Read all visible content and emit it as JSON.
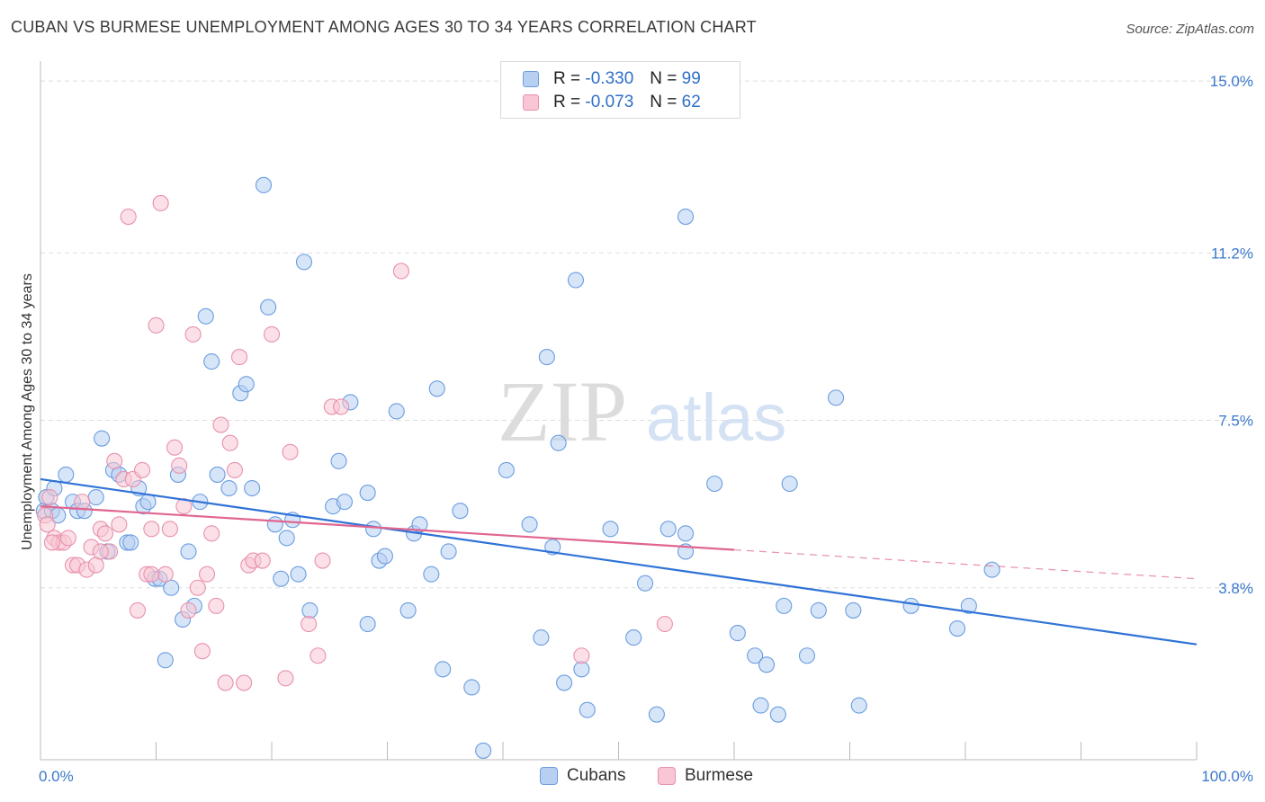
{
  "title": "CUBAN VS BURMESE UNEMPLOYMENT AMONG AGES 30 TO 34 YEARS CORRELATION CHART",
  "source": "Source: ZipAtlas.com",
  "watermark": {
    "zip": "ZIP",
    "atlas": "atlas"
  },
  "legend": {
    "r_label": "R =",
    "n_label": "N =",
    "rows": [
      {
        "name": "Cubans",
        "r": "-0.330",
        "n": "99",
        "fill": "#b7d0f2",
        "stroke": "#6a9de0"
      },
      {
        "name": "Burmese",
        "r": "-0.073",
        "n": "62",
        "fill": "#f8c6d4",
        "stroke": "#e891ac"
      }
    ]
  },
  "chart_data": {
    "type": "scatter",
    "title": "CUBAN VS BURMESE UNEMPLOYMENT AMONG AGES 30 TO 34 YEARS CORRELATION CHART",
    "xlabel": "",
    "ylabel": "Unemployment Among Ages 30 to 34 years",
    "xlim": [
      0,
      100
    ],
    "ylim": [
      0,
      15.2
    ],
    "x_tick_labels": [
      "0.0%",
      "100.0%"
    ],
    "y_ticks": [
      3.8,
      7.5,
      11.2,
      15.0
    ],
    "y_tick_labels": [
      "3.8%",
      "7.5%",
      "11.2%",
      "15.0%"
    ],
    "grid": true,
    "legend_position": "top-center",
    "series": [
      {
        "name": "Cubans",
        "color": "#6a9de0",
        "fill": "#b7d0f2",
        "trend_color": "#2f72d6",
        "trend": {
          "x0": 0,
          "y0": 6.2,
          "x1": 100,
          "y1": 2.55,
          "dashed_from": null
        },
        "points": [
          [
            0.3,
            5.5
          ],
          [
            0.5,
            5.8
          ],
          [
            1.0,
            5.5
          ],
          [
            1.2,
            6.0
          ],
          [
            1.5,
            5.4
          ],
          [
            2.2,
            6.3
          ],
          [
            2.8,
            5.7
          ],
          [
            3.2,
            5.5
          ],
          [
            3.8,
            5.5
          ],
          [
            4.8,
            5.8
          ],
          [
            5.3,
            7.1
          ],
          [
            5.8,
            4.6
          ],
          [
            6.3,
            6.4
          ],
          [
            6.8,
            6.3
          ],
          [
            7.5,
            4.8
          ],
          [
            7.8,
            4.8
          ],
          [
            8.5,
            6.0
          ],
          [
            8.9,
            5.6
          ],
          [
            9.3,
            5.7
          ],
          [
            9.9,
            4.0
          ],
          [
            10.3,
            4.0
          ],
          [
            10.8,
            2.2
          ],
          [
            11.3,
            3.8
          ],
          [
            11.9,
            6.3
          ],
          [
            12.3,
            3.1
          ],
          [
            12.8,
            4.6
          ],
          [
            13.3,
            3.4
          ],
          [
            13.8,
            5.7
          ],
          [
            14.3,
            9.8
          ],
          [
            14.8,
            8.8
          ],
          [
            15.3,
            6.3
          ],
          [
            16.3,
            6.0
          ],
          [
            17.3,
            8.1
          ],
          [
            17.8,
            8.3
          ],
          [
            18.3,
            6.0
          ],
          [
            19.3,
            12.7
          ],
          [
            19.7,
            10.0
          ],
          [
            20.3,
            5.2
          ],
          [
            20.8,
            4.0
          ],
          [
            21.3,
            4.9
          ],
          [
            21.8,
            5.3
          ],
          [
            22.3,
            4.1
          ],
          [
            22.8,
            11.0
          ],
          [
            23.3,
            3.3
          ],
          [
            25.3,
            5.6
          ],
          [
            25.8,
            6.6
          ],
          [
            26.3,
            5.7
          ],
          [
            26.8,
            7.9
          ],
          [
            28.3,
            5.9
          ],
          [
            28.8,
            5.1
          ],
          [
            28.3,
            3.0
          ],
          [
            29.3,
            4.4
          ],
          [
            29.8,
            4.5
          ],
          [
            30.8,
            7.7
          ],
          [
            31.8,
            3.3
          ],
          [
            32.3,
            5.0
          ],
          [
            32.8,
            5.2
          ],
          [
            33.8,
            4.1
          ],
          [
            34.3,
            8.2
          ],
          [
            34.8,
            2.0
          ],
          [
            35.3,
            4.6
          ],
          [
            36.3,
            5.5
          ],
          [
            37.3,
            1.6
          ],
          [
            38.3,
            0.2
          ],
          [
            40.3,
            6.4
          ],
          [
            42.3,
            5.2
          ],
          [
            43.3,
            2.7
          ],
          [
            43.8,
            8.9
          ],
          [
            44.3,
            4.7
          ],
          [
            44.8,
            7.0
          ],
          [
            45.3,
            1.7
          ],
          [
            46.3,
            10.6
          ],
          [
            46.8,
            2.0
          ],
          [
            47.3,
            1.1
          ],
          [
            49.3,
            5.1
          ],
          [
            51.3,
            2.7
          ],
          [
            52.3,
            3.9
          ],
          [
            53.3,
            1.0
          ],
          [
            54.3,
            5.1
          ],
          [
            55.8,
            5.0
          ],
          [
            55.8,
            4.6
          ],
          [
            55.8,
            12.0
          ],
          [
            58.3,
            6.1
          ],
          [
            60.3,
            2.8
          ],
          [
            61.8,
            2.3
          ],
          [
            62.3,
            1.2
          ],
          [
            62.8,
            2.1
          ],
          [
            63.8,
            1.0
          ],
          [
            64.3,
            3.4
          ],
          [
            64.8,
            6.1
          ],
          [
            66.3,
            2.3
          ],
          [
            67.3,
            3.3
          ],
          [
            68.8,
            8.0
          ],
          [
            70.3,
            3.3
          ],
          [
            70.8,
            1.2
          ],
          [
            75.3,
            3.4
          ],
          [
            79.3,
            2.9
          ],
          [
            80.3,
            3.4
          ],
          [
            82.3,
            4.2
          ]
        ]
      },
      {
        "name": "Burmese",
        "color": "#e891ac",
        "fill": "#f8c6d4",
        "trend_color": "#e0658f",
        "trend": {
          "x0": 0,
          "y0": 5.6,
          "x1": 100,
          "y1": 4.0,
          "solid_until": 60
        },
        "points": [
          [
            0.4,
            5.4
          ],
          [
            0.8,
            5.8
          ],
          [
            1.2,
            4.9
          ],
          [
            1.6,
            4.8
          ],
          [
            2.0,
            4.8
          ],
          [
            2.4,
            4.9
          ],
          [
            2.8,
            4.3
          ],
          [
            3.2,
            4.3
          ],
          [
            3.6,
            5.7
          ],
          [
            4.0,
            4.2
          ],
          [
            4.4,
            4.7
          ],
          [
            4.8,
            4.3
          ],
          [
            5.2,
            5.1
          ],
          [
            5.6,
            5.0
          ],
          [
            6.0,
            4.6
          ],
          [
            6.4,
            6.6
          ],
          [
            6.8,
            5.2
          ],
          [
            7.2,
            6.2
          ],
          [
            7.6,
            12.0
          ],
          [
            8.0,
            6.2
          ],
          [
            8.4,
            3.3
          ],
          [
            8.8,
            6.4
          ],
          [
            9.2,
            4.1
          ],
          [
            9.6,
            5.1
          ],
          [
            10.0,
            9.6
          ],
          [
            10.4,
            12.3
          ],
          [
            10.8,
            4.1
          ],
          [
            11.2,
            5.1
          ],
          [
            11.6,
            6.9
          ],
          [
            12.0,
            6.5
          ],
          [
            12.4,
            5.6
          ],
          [
            12.8,
            3.3
          ],
          [
            13.2,
            9.4
          ],
          [
            13.6,
            3.8
          ],
          [
            14.0,
            2.4
          ],
          [
            14.4,
            4.1
          ],
          [
            14.8,
            5.0
          ],
          [
            15.2,
            3.4
          ],
          [
            15.6,
            7.4
          ],
          [
            16.0,
            1.7
          ],
          [
            16.4,
            7.0
          ],
          [
            16.8,
            6.4
          ],
          [
            17.2,
            8.9
          ],
          [
            17.6,
            1.7
          ],
          [
            18.0,
            4.3
          ],
          [
            18.4,
            4.4
          ],
          [
            19.2,
            4.4
          ],
          [
            20.0,
            9.4
          ],
          [
            21.2,
            1.8
          ],
          [
            21.6,
            6.8
          ],
          [
            23.2,
            3.0
          ],
          [
            24.0,
            2.3
          ],
          [
            24.4,
            4.4
          ],
          [
            25.2,
            7.8
          ],
          [
            26.0,
            7.8
          ],
          [
            31.2,
            10.8
          ],
          [
            46.8,
            2.3
          ],
          [
            54.0,
            3.0
          ],
          [
            0.6,
            5.2
          ],
          [
            1.0,
            4.8
          ],
          [
            5.2,
            4.6
          ],
          [
            9.6,
            4.1
          ]
        ]
      }
    ]
  }
}
